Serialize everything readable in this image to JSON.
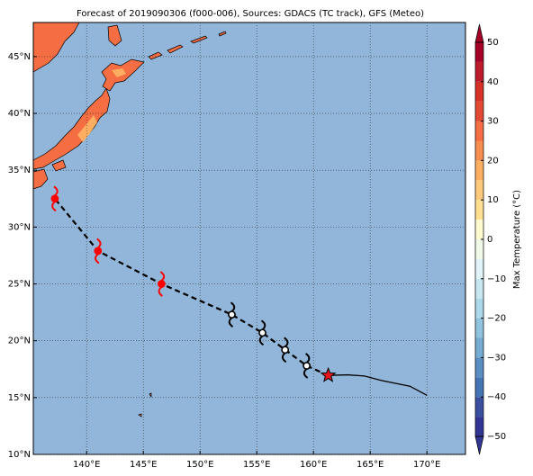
{
  "chart_data": {
    "type": "track-map",
    "title": "Forecast of 2019090306 (f000-006), Sources: GDACS (TC track), GFS (Meteo)",
    "xlim": [
      135.3,
      173.4
    ],
    "ylim": [
      10,
      48
    ],
    "xticks": [
      {
        "value": 140,
        "label": "140°E"
      },
      {
        "value": 145,
        "label": "145°E"
      },
      {
        "value": 150,
        "label": "150°E"
      },
      {
        "value": 155,
        "label": "155°E"
      },
      {
        "value": 160,
        "label": "160°E"
      },
      {
        "value": 165,
        "label": "165°E"
      },
      {
        "value": 170,
        "label": "170°E"
      }
    ],
    "yticks": [
      {
        "value": 10,
        "label": "10°N"
      },
      {
        "value": 15,
        "label": "15°N"
      },
      {
        "value": 20,
        "label": "20°N"
      },
      {
        "value": 25,
        "label": "25°N"
      },
      {
        "value": 30,
        "label": "30°N"
      },
      {
        "value": 35,
        "label": "35°N"
      },
      {
        "value": 40,
        "label": "40°N"
      },
      {
        "value": 45,
        "label": "45°N"
      }
    ],
    "grid": true,
    "forecast": {
      "x": [
        161.3,
        159.4,
        157.5,
        155.5,
        152.8,
        146.6,
        141.0,
        137.2
      ],
      "y": [
        16.95,
        17.8,
        19.2,
        20.7,
        22.3,
        25.0,
        27.9,
        32.5
      ],
      "color": "#000000",
      "markers": [
        "star",
        "cyclone",
        "cyclone",
        "cyclone",
        "cyclone",
        "cyclone",
        "cyclone",
        "cyclone"
      ],
      "marker_colors": [
        "#e8161b",
        "#000000",
        "#000000",
        "#000000",
        "#000000",
        "#ff0000",
        "#ff0000",
        "#ff0000"
      ]
    },
    "past": {
      "x": [
        161.3,
        163.0,
        164.5,
        166.0,
        168.5,
        170.0
      ],
      "y": [
        16.95,
        17.0,
        16.9,
        16.5,
        16.0,
        15.2
      ],
      "color": "#000000"
    },
    "colorbar": {
      "label": "Max Temperature (°C)",
      "lim": [
        -50,
        50
      ],
      "ticks": [
        {
          "value": -50,
          "label": "−50"
        },
        {
          "value": -40,
          "label": "−40"
        },
        {
          "value": -30,
          "label": "−30"
        },
        {
          "value": -20,
          "label": "−20"
        },
        {
          "value": -10,
          "label": "−10"
        },
        0,
        10,
        20,
        30,
        40,
        50
      ],
      "colors": [
        "#313695",
        "#3b4fa0",
        "#4575b4",
        "#5a8dc1",
        "#74add1",
        "#90c3dd",
        "#abd9e9",
        "#c6e6f0",
        "#e0f3f8",
        "#f1f9e9",
        "#fffbd0",
        "#fee090",
        "#fec97a",
        "#fdae61",
        "#f88d52",
        "#f46d43",
        "#e34a33",
        "#d73027",
        "#bb1b2b",
        "#a50026"
      ]
    }
  }
}
